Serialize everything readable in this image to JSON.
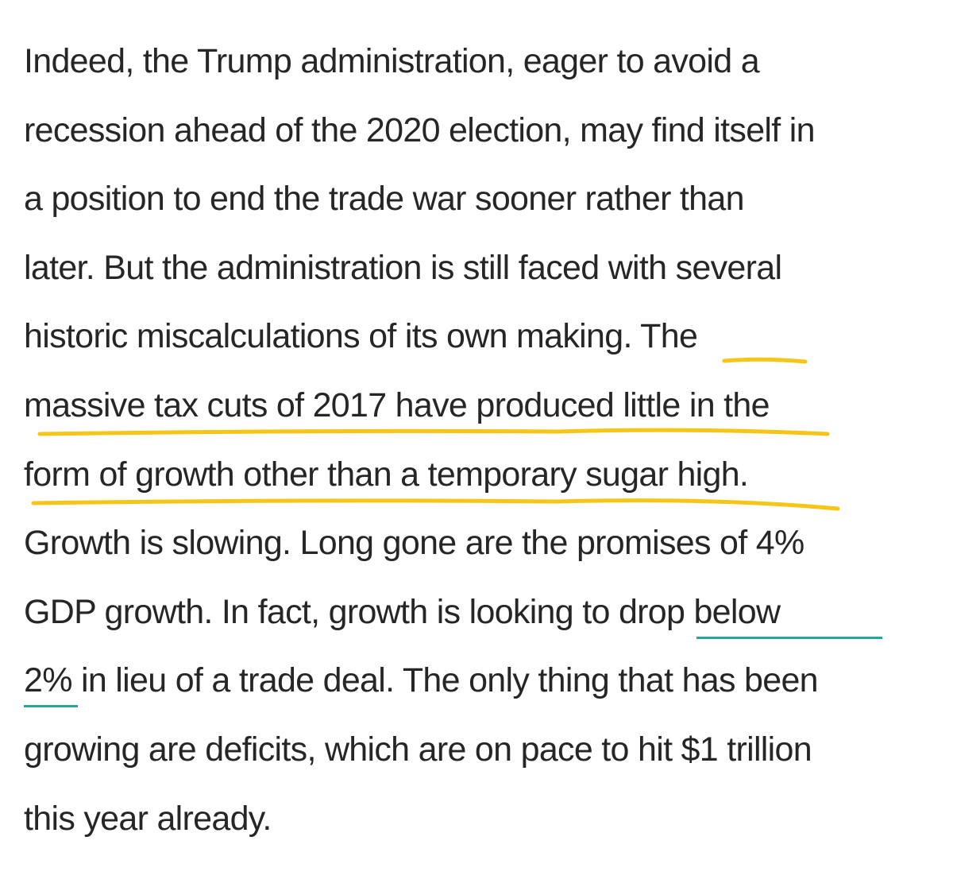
{
  "article": {
    "lines": [
      {
        "text": "Indeed, the Trump administration, eager to avoid a"
      },
      {
        "text": "recession ahead of the 2020 election, may find itself in"
      },
      {
        "text": "a position to end the trade war sooner rather than"
      },
      {
        "text": "later. But the administration is still faced with several"
      },
      {
        "text": "historic miscalculations of its own making. The"
      },
      {
        "text": "massive tax cuts of 2017 have produced little in the"
      },
      {
        "text": "form of growth other than a temporary sugar high."
      },
      {
        "text": "Growth is slowing. Long gone are the promises of 4%"
      },
      {
        "text_before_link": "GDP growth. In fact, growth is looking to ",
        "link_text": "drop below"
      },
      {
        "link_text": "2%",
        "text_after_link": " in lieu of a trade deal. The only thing that has been"
      },
      {
        "text": "growing are deficits, which are on pace to hit $1 trillion"
      },
      {
        "text": "this year already."
      }
    ]
  },
  "colors": {
    "body_text": "#262626",
    "link_underline": "#26a59a",
    "highlighter": "#f5c518"
  }
}
